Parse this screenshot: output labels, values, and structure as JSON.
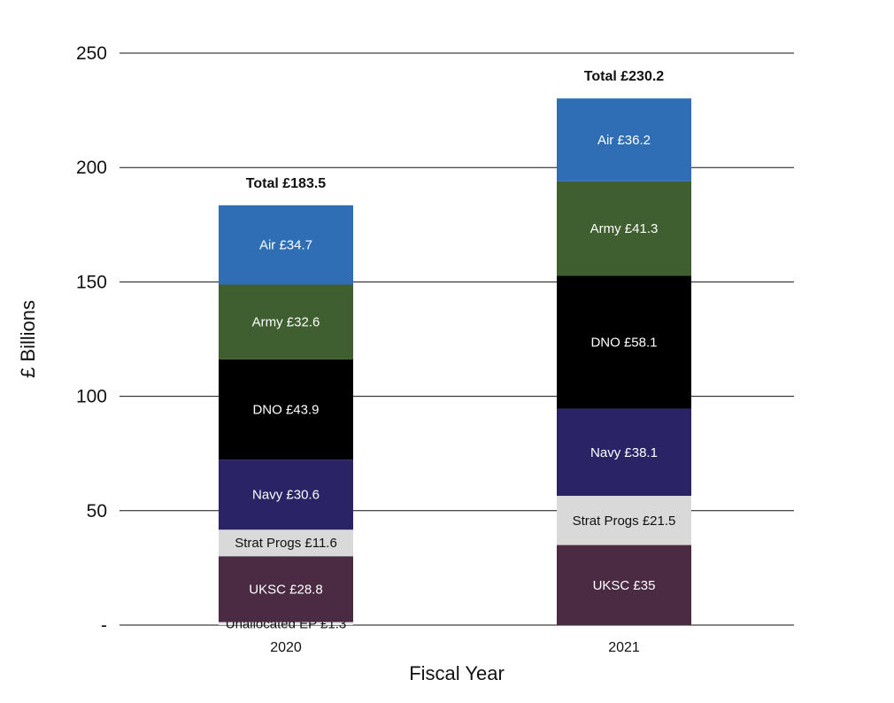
{
  "chart_data": {
    "type": "bar",
    "stacked": true,
    "title": "",
    "xlabel": "Fiscal Year",
    "ylabel": "£ Billions",
    "ylim": [
      0,
      250
    ],
    "yticks": [
      0,
      50,
      100,
      150,
      200,
      250
    ],
    "ytick_labels": [
      "-",
      "50",
      "100",
      "150",
      "200",
      "250"
    ],
    "grid": true,
    "categories": [
      "2020",
      "2021"
    ],
    "totals": [
      183.5,
      230.2
    ],
    "total_labels": [
      "Total £183.5",
      "Total £230.2"
    ],
    "series": [
      {
        "name": "Unallocated EP",
        "color": "#e8e8e8",
        "text_color": "#111111",
        "values": [
          1.3,
          0
        ],
        "labels": [
          "Unallocated EP £1.3",
          ""
        ]
      },
      {
        "name": "UKSC",
        "color": "#4b2b43",
        "text_color": "#ffffff",
        "values": [
          28.8,
          35
        ],
        "labels": [
          "UKSC £28.8",
          "UKSC £35"
        ]
      },
      {
        "name": "Strat Progs",
        "color": "#d9d9d9",
        "text_color": "#111111",
        "values": [
          11.6,
          21.5
        ],
        "labels": [
          "Strat Progs £11.6",
          "Strat Progs £21.5"
        ]
      },
      {
        "name": "Navy",
        "color": "#2a2466",
        "text_color": "#ffffff",
        "values": [
          30.6,
          38.1
        ],
        "labels": [
          "Navy £30.6",
          "Navy £38.1"
        ]
      },
      {
        "name": "DNO",
        "color": "#000000",
        "text_color": "#ffffff",
        "values": [
          43.9,
          58.1
        ],
        "labels": [
          "DNO £43.9",
          "DNO £58.1"
        ]
      },
      {
        "name": "Army",
        "color": "#3f5f30",
        "text_color": "#ffffff",
        "values": [
          32.6,
          41.3
        ],
        "labels": [
          "Army £32.6",
          "Army £41.3"
        ]
      },
      {
        "name": "Air",
        "color": "#2f6eb5",
        "text_color": "#ffffff",
        "values": [
          34.7,
          36.2
        ],
        "labels": [
          "Air £34.7",
          "Air £36.2"
        ]
      }
    ]
  }
}
